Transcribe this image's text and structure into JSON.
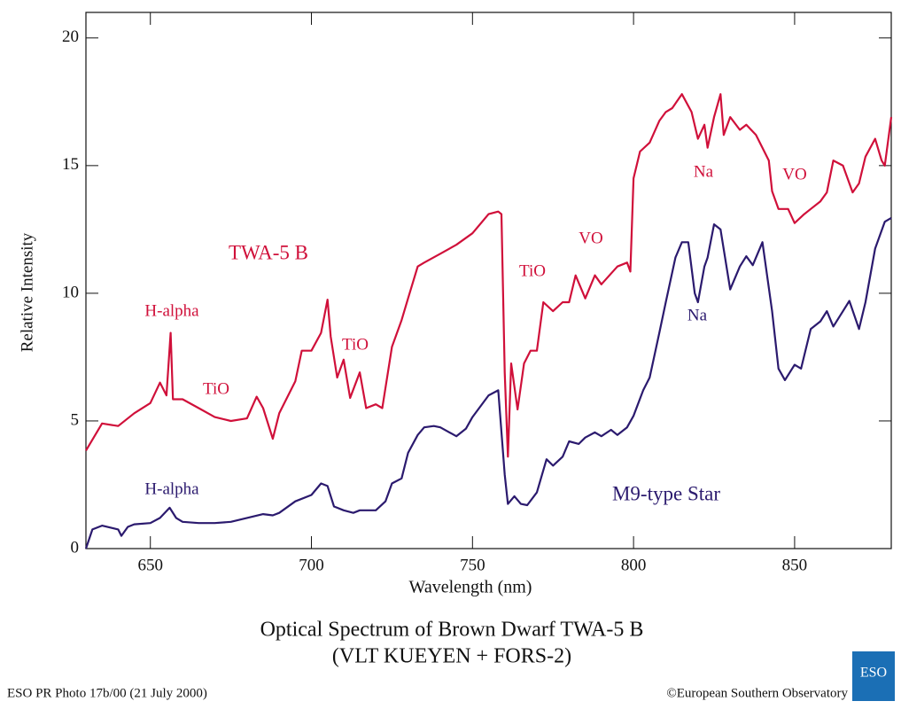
{
  "chart_data": {
    "type": "line",
    "title": "Optical Spectrum of Brown Dwarf TWA-5 B",
    "subtitle": "(VLT KUEYEN + FORS-2)",
    "x_label": "Wavelength (nm)",
    "y_label": "Relative Intensity",
    "xlim": [
      630,
      880
    ],
    "ylim": [
      0,
      21
    ],
    "xticks": [
      650,
      700,
      750,
      800,
      850
    ],
    "yticks": [
      0,
      5,
      10,
      15,
      20
    ],
    "series": [
      {
        "name": "TWA-5 B",
        "color": "#d0103a",
        "x": [
          630,
          635,
          640,
          645,
          650,
          653,
          655,
          656.3,
          657,
          660,
          665,
          670,
          675,
          680,
          683,
          685,
          688,
          690,
          695,
          697,
          700,
          703,
          705,
          706,
          708,
          710,
          712,
          715,
          717,
          720,
          722,
          725,
          728,
          730,
          733,
          735,
          740,
          745,
          750,
          755,
          758,
          759,
          760,
          761,
          762,
          764,
          766,
          768,
          770,
          772,
          775,
          778,
          780,
          782,
          785,
          788,
          790,
          795,
          798,
          799,
          800,
          802,
          805,
          808,
          810,
          812,
          815,
          818,
          820,
          822,
          823,
          825,
          827,
          828,
          830,
          833,
          835,
          838,
          840,
          842,
          843,
          845,
          848,
          850,
          853,
          855,
          858,
          860,
          862,
          865,
          868,
          870,
          872,
          875,
          877,
          878,
          880
        ],
        "values": [
          3.84,
          4.9,
          4.8,
          5.3,
          5.7,
          6.5,
          6.0,
          8.45,
          5.85,
          5.85,
          5.5,
          5.15,
          5.0,
          5.1,
          5.95,
          5.5,
          4.3,
          5.3,
          6.55,
          7.75,
          7.75,
          8.45,
          9.75,
          8.3,
          6.7,
          7.4,
          5.9,
          6.9,
          5.5,
          5.65,
          5.5,
          7.9,
          8.95,
          9.8,
          11.05,
          11.2,
          11.55,
          11.9,
          12.35,
          13.1,
          13.2,
          13.1,
          6.9,
          3.6,
          7.25,
          5.45,
          7.25,
          7.75,
          7.75,
          9.65,
          9.3,
          9.65,
          9.65,
          10.7,
          9.8,
          10.7,
          10.35,
          11.05,
          11.2,
          10.85,
          14.5,
          15.55,
          15.9,
          16.75,
          17.1,
          17.25,
          17.8,
          17.1,
          16.05,
          16.6,
          15.7,
          16.9,
          17.8,
          16.2,
          16.9,
          16.4,
          16.6,
          16.2,
          15.7,
          15.2,
          14.0,
          13.3,
          13.3,
          12.75,
          13.1,
          13.3,
          13.6,
          13.95,
          15.2,
          15.0,
          13.95,
          14.3,
          15.35,
          16.05,
          15.2,
          15.0,
          16.9
        ]
      },
      {
        "name": "M9-type Star",
        "color": "#2b1a6e",
        "x": [
          630,
          632,
          635,
          640,
          641,
          643,
          645,
          650,
          653,
          656,
          658,
          660,
          665,
          670,
          675,
          680,
          685,
          688,
          690,
          695,
          700,
          703,
          705,
          707,
          710,
          713,
          715,
          720,
          723,
          725,
          728,
          730,
          733,
          735,
          738,
          740,
          745,
          748,
          750,
          755,
          758,
          760,
          761,
          763,
          765,
          767,
          770,
          773,
          775,
          778,
          780,
          783,
          785,
          788,
          790,
          793,
          795,
          798,
          800,
          803,
          805,
          808,
          810,
          813,
          815,
          817,
          819,
          820,
          822,
          823,
          825,
          827,
          830,
          833,
          835,
          837,
          840,
          843,
          845,
          847,
          850,
          852,
          855,
          858,
          860,
          862,
          865,
          867,
          870,
          872,
          875,
          878,
          880
        ],
        "values": [
          0,
          0.75,
          0.9,
          0.75,
          0.5,
          0.85,
          0.95,
          1.0,
          1.2,
          1.6,
          1.2,
          1.05,
          1.0,
          1.0,
          1.05,
          1.2,
          1.35,
          1.3,
          1.4,
          1.85,
          2.1,
          2.55,
          2.45,
          1.65,
          1.5,
          1.4,
          1.5,
          1.5,
          1.85,
          2.55,
          2.75,
          3.75,
          4.45,
          4.75,
          4.8,
          4.75,
          4.4,
          4.7,
          5.15,
          6.0,
          6.2,
          2.9,
          1.75,
          2.05,
          1.75,
          1.7,
          2.2,
          3.5,
          3.25,
          3.6,
          4.2,
          4.1,
          4.35,
          4.55,
          4.4,
          4.65,
          4.45,
          4.75,
          5.2,
          6.2,
          6.7,
          8.45,
          9.65,
          11.4,
          12.0,
          12.0,
          10.0,
          9.65,
          11.05,
          11.4,
          12.7,
          12.5,
          10.15,
          11.05,
          11.45,
          11.1,
          12.0,
          9.3,
          7.05,
          6.6,
          7.2,
          7.05,
          8.6,
          8.9,
          9.3,
          8.7,
          9.3,
          9.7,
          8.6,
          9.65,
          11.75,
          12.8,
          12.95
        ]
      }
    ],
    "annotations": [
      {
        "text": "H-alpha",
        "series": 0
      },
      {
        "text": "TiO",
        "series": 0
      },
      {
        "text": "TiO",
        "series": 0
      },
      {
        "text": "TiO",
        "series": 0
      },
      {
        "text": "VO",
        "series": 0
      },
      {
        "text": "Na",
        "series": 0
      },
      {
        "text": "VO",
        "series": 0
      },
      {
        "text": "H-alpha",
        "series": 1
      },
      {
        "text": "Na",
        "series": 1
      }
    ],
    "credit_left": "ESO PR Photo 17b/00 (21 July 2000)",
    "credit_right": "©European Southern Observatory",
    "logo_text": "ESO"
  }
}
